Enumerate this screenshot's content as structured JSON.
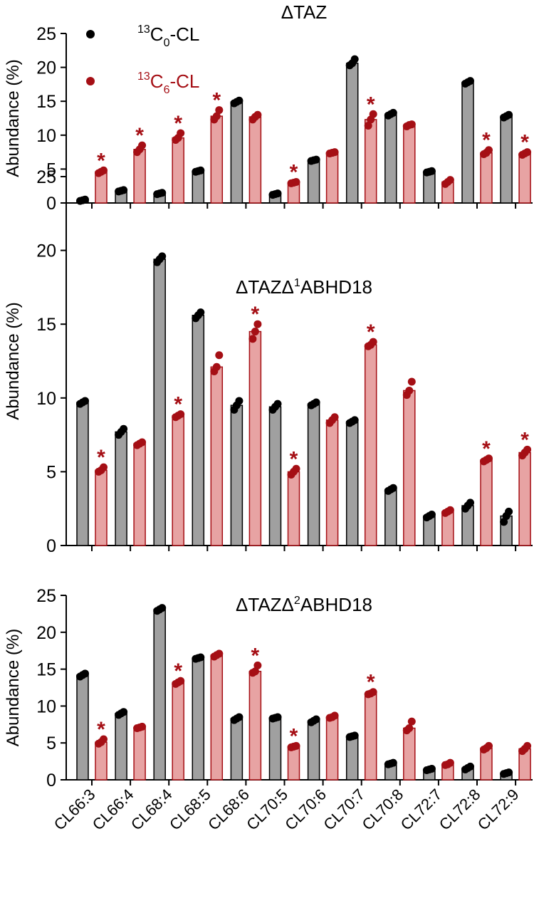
{
  "chart_data": [
    {
      "type": "bar",
      "title": "ΔTAZ",
      "ylabel": "Abundance (%)",
      "ylim": [
        0,
        25
      ],
      "yticks": [
        0,
        5,
        10,
        15,
        20,
        25
      ],
      "categories": [
        "CL66:3",
        "CL66:4",
        "CL68:4",
        "CL68:5",
        "CL68:6",
        "CL70:5",
        "CL70:6",
        "CL70:7",
        "CL70:8",
        "CL72:7",
        "CL72:8",
        "CL72:9"
      ],
      "series": [
        {
          "name": "13C0-CL",
          "color": "#a0a0a0",
          "point_color": "#000000",
          "values": [
            0.4,
            1.8,
            1.4,
            4.7,
            14.9,
            1.3,
            6.3,
            20.6,
            13.1,
            4.6,
            17.8,
            12.8
          ],
          "points": [
            [
              0.3,
              0.4,
              0.5
            ],
            [
              1.7,
              1.8,
              1.9
            ],
            [
              1.3,
              1.4,
              1.5
            ],
            [
              4.6,
              4.7,
              4.8
            ],
            [
              14.7,
              14.9,
              15.1
            ],
            [
              1.2,
              1.3,
              1.4
            ],
            [
              6.2,
              6.3,
              6.4
            ],
            [
              20.3,
              20.6,
              21.2
            ],
            [
              12.9,
              13.1,
              13.3
            ],
            [
              4.5,
              4.6,
              4.7
            ],
            [
              17.6,
              17.8,
              18.0
            ],
            [
              12.6,
              12.8,
              13.0
            ]
          ]
        },
        {
          "name": "13C6-CL",
          "color": "#e7a3a3",
          "point_color": "#a50f15",
          "values": [
            4.6,
            7.9,
            9.6,
            12.8,
            12.7,
            3.0,
            7.4,
            12.3,
            11.5,
            3.1,
            7.4,
            7.3
          ],
          "points": [
            [
              4.4,
              4.6,
              4.8
            ],
            [
              7.5,
              7.9,
              8.5
            ],
            [
              9.3,
              9.6,
              10.3
            ],
            [
              12.3,
              12.8,
              13.7
            ],
            [
              12.3,
              12.7,
              13.0
            ],
            [
              2.9,
              3.0,
              3.1
            ],
            [
              7.3,
              7.4,
              7.5
            ],
            [
              11.4,
              12.3,
              13.1
            ],
            [
              11.3,
              11.5,
              11.6
            ],
            [
              2.8,
              3.1,
              3.4
            ],
            [
              7.2,
              7.4,
              7.8
            ],
            [
              7.1,
              7.3,
              7.5
            ]
          ]
        }
      ],
      "significance": [
        "*",
        "*",
        "*",
        "*",
        "",
        "*",
        "",
        "*",
        "",
        "",
        "*",
        "*"
      ],
      "legend": [
        "13C0-CL",
        "13C6-CL"
      ]
    },
    {
      "type": "bar",
      "title": "ΔTAZΔ1ABHD18",
      "ylabel": "Abundance (%)",
      "ylim": [
        0,
        25
      ],
      "yticks": [
        0,
        5,
        10,
        15,
        20,
        25
      ],
      "categories": [
        "CL66:3",
        "CL66:4",
        "CL68:4",
        "CL68:5",
        "CL68:6",
        "CL70:5",
        "CL70:6",
        "CL70:7",
        "CL70:8",
        "CL72:7",
        "CL72:8",
        "CL72:9"
      ],
      "series": [
        {
          "name": "13C0-CL",
          "color": "#a0a0a0",
          "point_color": "#000000",
          "values": [
            9.7,
            7.7,
            19.4,
            15.6,
            9.5,
            9.4,
            9.6,
            8.4,
            3.8,
            2.0,
            2.7,
            2.0
          ],
          "points": [
            [
              9.6,
              9.7,
              9.8
            ],
            [
              7.5,
              7.7,
              7.9
            ],
            [
              19.2,
              19.4,
              19.6
            ],
            [
              15.4,
              15.6,
              15.8
            ],
            [
              9.2,
              9.5,
              9.8
            ],
            [
              9.2,
              9.4,
              9.6
            ],
            [
              9.5,
              9.6,
              9.7
            ],
            [
              8.3,
              8.4,
              8.5
            ],
            [
              3.7,
              3.8,
              3.9
            ],
            [
              1.9,
              2.0,
              2.1
            ],
            [
              2.5,
              2.7,
              2.9
            ],
            [
              1.6,
              2.0,
              2.3
            ]
          ]
        },
        {
          "name": "13C6-CL",
          "color": "#e7a3a3",
          "point_color": "#a50f15",
          "values": [
            5.1,
            6.9,
            8.8,
            12.1,
            14.5,
            5.0,
            8.5,
            13.6,
            10.5,
            2.3,
            5.8,
            6.3
          ],
          "points": [
            [
              5.0,
              5.1,
              5.3
            ],
            [
              6.8,
              6.9,
              7.0
            ],
            [
              8.7,
              8.8,
              8.9
            ],
            [
              11.8,
              12.1,
              12.9
            ],
            [
              14.0,
              14.5,
              15.0
            ],
            [
              4.8,
              5.0,
              5.2
            ],
            [
              8.3,
              8.5,
              8.7
            ],
            [
              13.5,
              13.6,
              13.8
            ],
            [
              10.2,
              10.5,
              11.1
            ],
            [
              2.2,
              2.3,
              2.4
            ],
            [
              5.7,
              5.8,
              5.9
            ],
            [
              6.1,
              6.3,
              6.5
            ]
          ]
        }
      ],
      "significance": [
        "*",
        "",
        "*",
        "",
        "*",
        "*",
        "",
        "*",
        "",
        "",
        "*",
        "*"
      ]
    },
    {
      "type": "bar",
      "title": "ΔTAZΔ2ABHD18",
      "ylabel": "Abundance (%)",
      "ylim": [
        0,
        25
      ],
      "yticks": [
        0,
        5,
        10,
        15,
        20,
        25
      ],
      "categories": [
        "CL66:3",
        "CL66:4",
        "CL68:4",
        "CL68:5",
        "CL68:6",
        "CL70:5",
        "CL70:6",
        "CL70:7",
        "CL70:8",
        "CL72:7",
        "CL72:8",
        "CL72:9"
      ],
      "series": [
        {
          "name": "13C0-CL",
          "color": "#a0a0a0",
          "point_color": "#000000",
          "values": [
            14.2,
            9.0,
            23.1,
            16.5,
            8.3,
            8.4,
            8.0,
            5.9,
            2.2,
            1.4,
            1.6,
            0.9
          ],
          "points": [
            [
              14.0,
              14.2,
              14.4
            ],
            [
              8.8,
              9.0,
              9.2
            ],
            [
              22.9,
              23.1,
              23.3
            ],
            [
              16.4,
              16.5,
              16.6
            ],
            [
              8.1,
              8.3,
              8.5
            ],
            [
              8.3,
              8.4,
              8.5
            ],
            [
              7.8,
              8.0,
              8.2
            ],
            [
              5.8,
              5.9,
              6.0
            ],
            [
              2.1,
              2.2,
              2.3
            ],
            [
              1.3,
              1.4,
              1.5
            ],
            [
              1.4,
              1.6,
              1.8
            ],
            [
              0.8,
              0.9,
              1.0
            ]
          ]
        },
        {
          "name": "13C6-CL",
          "color": "#e7a3a3",
          "point_color": "#a50f15",
          "values": [
            5.1,
            7.1,
            13.2,
            16.9,
            14.7,
            4.5,
            8.5,
            11.7,
            7.0,
            2.1,
            4.3,
            4.2
          ],
          "points": [
            [
              4.9,
              5.1,
              5.5
            ],
            [
              7.0,
              7.1,
              7.2
            ],
            [
              13.0,
              13.2,
              13.4
            ],
            [
              16.7,
              16.9,
              17.1
            ],
            [
              14.5,
              14.7,
              15.5
            ],
            [
              4.4,
              4.5,
              4.6
            ],
            [
              8.4,
              8.5,
              8.7
            ],
            [
              11.6,
              11.7,
              11.9
            ],
            [
              6.7,
              7.0,
              7.9
            ],
            [
              2.0,
              2.1,
              2.3
            ],
            [
              4.1,
              4.3,
              4.6
            ],
            [
              3.9,
              4.2,
              4.6
            ]
          ]
        }
      ],
      "significance": [
        "*",
        "",
        "*",
        "",
        "*",
        "*",
        "",
        "*",
        "",
        "",
        "",
        ""
      ]
    }
  ],
  "legend": {
    "c0": {
      "sup": "13",
      "main": "C",
      "sub": "0",
      "suffix": "-CL"
    },
    "c6": {
      "sup": "13",
      "main": "C",
      "sub": "6",
      "suffix": "-CL"
    }
  },
  "colors": {
    "c0_bar": "#a0a0a0",
    "c0_point": "#000000",
    "c6_bar": "#e7a3a3",
    "c6_edge": "#a50f15",
    "c6_point": "#a50f15",
    "axis": "#000000"
  }
}
